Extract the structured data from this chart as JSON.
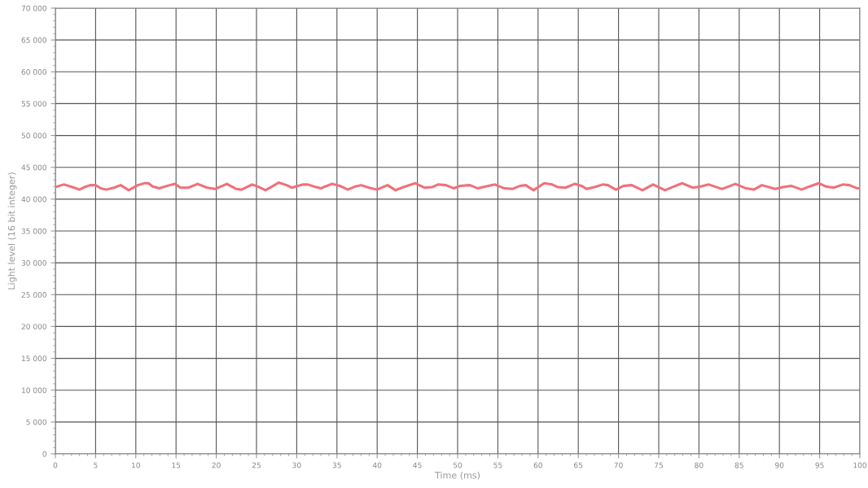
{
  "chart_data": {
    "type": "line",
    "xlabel": "Time (ms)",
    "ylabel": "Light level (16 bit integer)",
    "xlim": [
      0,
      100
    ],
    "xticks": [
      0,
      5,
      10,
      15,
      20,
      25,
      30,
      35,
      40,
      45,
      50,
      55,
      60,
      65,
      70,
      75,
      80,
      85,
      90,
      95,
      100
    ],
    "ylim": [
      0,
      70000
    ],
    "yticks": [
      {
        "value": 0,
        "label": "0"
      },
      {
        "value": 5000,
        "label": "5 000"
      },
      {
        "value": 10000,
        "label": "10 000"
      },
      {
        "value": 15000,
        "label": "15 000"
      },
      {
        "value": 20000,
        "label": "20 000"
      },
      {
        "value": 25000,
        "label": "25 000"
      },
      {
        "value": 30000,
        "label": "30 000"
      },
      {
        "value": 35000,
        "label": "35 000"
      },
      {
        "value": 40000,
        "label": "40 000"
      },
      {
        "value": 45000,
        "label": "45 000"
      },
      {
        "value": 50000,
        "label": "50 000"
      },
      {
        "value": 55000,
        "label": "55 000"
      },
      {
        "value": 60000,
        "label": "60 000"
      },
      {
        "value": 65000,
        "label": "65 000"
      },
      {
        "value": 70000,
        "label": "70 000"
      }
    ],
    "grid": true,
    "marker": "none",
    "line_style": "solid",
    "series": [
      {
        "color": "#f0707a",
        "x": [
          0,
          1.02,
          1.35,
          2.34,
          3.0,
          3.66,
          4.32,
          4.98,
          5.64,
          6.3,
          7.29,
          8.12,
          9.11,
          10.26,
          11.09,
          11.58,
          12.08,
          12.9,
          14.22,
          14.88,
          15.54,
          16.53,
          17.69,
          18.85,
          19.84,
          21.32,
          22.48,
          23.14,
          24.46,
          25.12,
          26.11,
          27.1,
          27.76,
          28.75,
          29.41,
          30.73,
          31.39,
          32.38,
          33.04,
          33.37,
          34.36,
          35.35,
          36.34,
          37.33,
          37.99,
          38.98,
          39.97,
          41.29,
          42.28,
          43.27,
          44.75,
          45.91,
          46.9,
          47.56,
          48.55,
          49.54,
          50.36,
          51.52,
          52.51,
          53.5,
          54.65,
          55.81,
          56.8,
          57.79,
          58.45,
          59.44,
          60.76,
          61.75,
          62.41,
          63.4,
          64.55,
          65.38,
          66.04,
          67.03,
          68.02,
          68.68,
          69.67,
          70.66,
          71.65,
          72.97,
          74.29,
          74.95,
          75.78,
          76.93,
          77.92,
          79.24,
          80.23,
          81.22,
          82.87,
          84.52,
          85.84,
          86.83,
          87.82,
          89.47,
          90.46,
          91.45,
          92.77,
          93.76,
          94.92,
          95.74,
          96.73,
          97.89,
          98.71,
          99.7,
          100
        ],
        "values": [
          41900,
          42300,
          42200,
          41800,
          41500,
          41900,
          42200,
          42200,
          41700,
          41500,
          41800,
          42200,
          41400,
          42200,
          42500,
          42500,
          42000,
          41700,
          42200,
          42400,
          41800,
          41800,
          42400,
          41800,
          41600,
          42400,
          41600,
          41500,
          42300,
          42000,
          41400,
          42100,
          42600,
          42200,
          41800,
          42300,
          42300,
          41900,
          41700,
          41900,
          42400,
          42100,
          41500,
          42000,
          42200,
          41800,
          41500,
          42200,
          41400,
          41900,
          42500,
          41800,
          41900,
          42300,
          42200,
          41700,
          42100,
          42200,
          41700,
          42000,
          42300,
          41700,
          41600,
          42100,
          42200,
          41400,
          42500,
          42300,
          41900,
          41800,
          42400,
          42100,
          41600,
          41900,
          42300,
          42200,
          41500,
          42100,
          42200,
          41400,
          42300,
          41900,
          41400,
          42000,
          42500,
          41800,
          42000,
          42300,
          41600,
          42400,
          41700,
          41500,
          42200,
          41600,
          41900,
          42100,
          41500,
          42000,
          42500,
          42000,
          41800,
          42300,
          42200,
          41700,
          41700
        ]
      }
    ]
  }
}
